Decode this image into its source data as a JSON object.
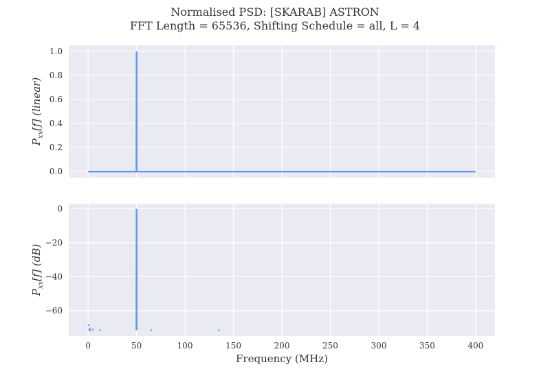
{
  "figure": {
    "title_line1": "Normalised PSD: [SKARAB] ASTRON",
    "title_line2": "FFT Length = 65536, Shifting Schedule = all, L = 4"
  },
  "chart_data": [
    {
      "type": "line",
      "title": "",
      "xlabel": "",
      "ylabel_main": "P",
      "ylabel_sub": "xx",
      "ylabel_rest": "[f] (linear)",
      "xlim": [
        -20,
        420
      ],
      "ylim": [
        -0.05,
        1.05
      ],
      "xticks": [
        0,
        50,
        100,
        150,
        200,
        250,
        300,
        350,
        400
      ],
      "xtick_labels_shown": false,
      "yticks": [
        0.0,
        0.2,
        0.4,
        0.6,
        0.8,
        1.0
      ],
      "ytick_labels": [
        "0.0",
        "0.2",
        "0.4",
        "0.6",
        "0.8",
        "1.0"
      ],
      "grid": true,
      "series": [
        {
          "color": "#6495ed",
          "x": [
            0,
            49.9,
            50,
            50.1,
            400
          ],
          "y": [
            0.0,
            0.0,
            1.0,
            0.0,
            0.0
          ]
        }
      ]
    },
    {
      "type": "line",
      "title": "",
      "xlabel": "Frequency (MHz)",
      "ylabel_main": "P",
      "ylabel_sub": "xx",
      "ylabel_rest": "[f] (dB)",
      "xlim": [
        -20,
        420
      ],
      "ylim": [
        -75,
        3
      ],
      "xticks": [
        0,
        50,
        100,
        150,
        200,
        250,
        300,
        350,
        400
      ],
      "xtick_labels": [
        "0",
        "50",
        "100",
        "150",
        "200",
        "250",
        "300",
        "350",
        "400"
      ],
      "yticks": [
        0,
        -20,
        -40,
        -60
      ],
      "ytick_labels": [
        "0",
        "−20",
        "−40",
        "−60"
      ],
      "grid": true,
      "series": [
        {
          "color": "#6495ed",
          "x": [
            49.9,
            50,
            50.1
          ],
          "y": [
            -71.5,
            0,
            -71.5
          ],
          "style": "line"
        },
        {
          "color": "#6495ed",
          "style": "points",
          "x": [
            0.5,
            1.0,
            1.5,
            2.5,
            5.0,
            12.0,
            65.0,
            135.0
          ],
          "y": [
            -68.5,
            -71.5,
            -70.5,
            -71.5,
            -71.0,
            -71.5,
            -71.5,
            -71.5
          ]
        }
      ]
    }
  ]
}
